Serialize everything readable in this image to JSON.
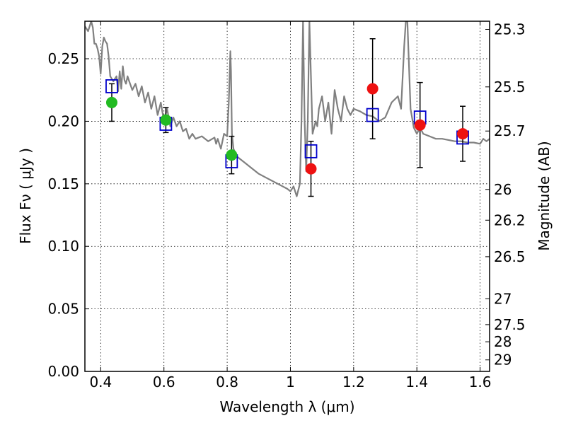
{
  "chart_data": {
    "type": "scatter",
    "xlabel": "Wavelength  λ (μm)",
    "ylabel": "Flux  Fν  ( μJy )",
    "y2label": "Magnitude (AB)",
    "xlim": [
      0.35,
      1.63
    ],
    "ylim": [
      0.0,
      0.28
    ],
    "grid": true,
    "xticks": [
      {
        "value": 0.4,
        "label": "0.4"
      },
      {
        "value": 0.6,
        "label": "0.6"
      },
      {
        "value": 0.8,
        "label": "0.8"
      },
      {
        "value": 1.0,
        "label": "1"
      },
      {
        "value": 1.2,
        "label": "1.2"
      },
      {
        "value": 1.4,
        "label": "1.4"
      },
      {
        "value": 1.6,
        "label": "1.6"
      }
    ],
    "yticks": [
      {
        "value": 0.0,
        "label": "0.00"
      },
      {
        "value": 0.05,
        "label": "0.05"
      },
      {
        "value": 0.1,
        "label": "0.10"
      },
      {
        "value": 0.15,
        "label": "0.15"
      },
      {
        "value": 0.2,
        "label": "0.20"
      },
      {
        "value": 0.25,
        "label": "0.25"
      }
    ],
    "y2ticks": [
      {
        "label": "25.3",
        "flux": 0.2735
      },
      {
        "label": "25.5",
        "flux": 0.2275
      },
      {
        "label": "25.7",
        "flux": 0.1922
      },
      {
        "label": "26",
        "flux": 0.1455
      },
      {
        "label": "26.2",
        "flux": 0.1209
      },
      {
        "label": "26.5",
        "flux": 0.0917
      },
      {
        "label": "27",
        "flux": 0.0581
      },
      {
        "label": "27.5",
        "flux": 0.0374
      },
      {
        "label": "28",
        "flux": 0.0237
      },
      {
        "label": "29",
        "flux": 0.0092
      }
    ],
    "series": [
      {
        "marker": "circle",
        "color": "#22bb22",
        "points": [
          {
            "x": 0.435,
            "y": 0.215,
            "yerr": 0.015
          },
          {
            "x": 0.606,
            "y": 0.201,
            "yerr": 0.01
          },
          {
            "x": 0.814,
            "y": 0.173,
            "yerr": 0.015
          }
        ]
      },
      {
        "marker": "circle",
        "color": "#ee1111",
        "points": [
          {
            "x": 1.065,
            "y": 0.162,
            "yerr": 0.022
          },
          {
            "x": 1.26,
            "y": 0.226,
            "yerr": 0.04
          },
          {
            "x": 1.41,
            "y": 0.197,
            "yerr": 0.034
          },
          {
            "x": 1.545,
            "y": 0.19,
            "yerr": 0.022
          }
        ]
      },
      {
        "marker": "square-open",
        "color": "#0000cc",
        "points": [
          {
            "x": 0.435,
            "y": 0.228
          },
          {
            "x": 0.606,
            "y": 0.198
          },
          {
            "x": 0.814,
            "y": 0.168
          },
          {
            "x": 1.065,
            "y": 0.176
          },
          {
            "x": 1.26,
            "y": 0.205
          },
          {
            "x": 1.41,
            "y": 0.203
          },
          {
            "x": 1.545,
            "y": 0.187
          }
        ]
      },
      {
        "type": "line",
        "color": "#808080",
        "x": [
          0.35,
          0.36,
          0.37,
          0.375,
          0.38,
          0.385,
          0.39,
          0.395,
          0.4,
          0.405,
          0.41,
          0.415,
          0.42,
          0.425,
          0.43,
          0.44,
          0.45,
          0.455,
          0.46,
          0.465,
          0.47,
          0.475,
          0.48,
          0.485,
          0.49,
          0.5,
          0.51,
          0.52,
          0.53,
          0.54,
          0.55,
          0.56,
          0.57,
          0.58,
          0.59,
          0.6,
          0.61,
          0.62,
          0.63,
          0.64,
          0.65,
          0.66,
          0.67,
          0.68,
          0.69,
          0.7,
          0.72,
          0.74,
          0.76,
          0.765,
          0.77,
          0.78,
          0.79,
          0.8,
          0.805,
          0.81,
          0.812,
          0.815,
          0.82,
          0.83,
          0.84,
          0.86,
          0.88,
          0.9,
          0.93,
          0.96,
          0.99,
          1.0,
          1.01,
          1.02,
          1.03,
          1.035,
          1.04,
          1.045,
          1.05,
          1.055,
          1.06,
          1.07,
          1.08,
          1.085,
          1.09,
          1.1,
          1.11,
          1.12,
          1.13,
          1.14,
          1.15,
          1.16,
          1.17,
          1.18,
          1.19,
          1.2,
          1.22,
          1.24,
          1.26,
          1.28,
          1.3,
          1.32,
          1.34,
          1.35,
          1.36,
          1.365,
          1.37,
          1.38,
          1.39,
          1.4,
          1.41,
          1.42,
          1.44,
          1.46,
          1.48,
          1.5,
          1.52,
          1.54,
          1.56,
          1.58,
          1.6,
          1.61,
          1.62,
          1.63
        ],
        "y": [
          0.276,
          0.272,
          0.28,
          0.275,
          0.262,
          0.262,
          0.258,
          0.252,
          0.238,
          0.26,
          0.267,
          0.264,
          0.262,
          0.252,
          0.236,
          0.232,
          0.236,
          0.224,
          0.24,
          0.226,
          0.244,
          0.233,
          0.23,
          0.236,
          0.232,
          0.225,
          0.23,
          0.22,
          0.228,
          0.215,
          0.223,
          0.21,
          0.22,
          0.205,
          0.215,
          0.2,
          0.21,
          0.196,
          0.203,
          0.196,
          0.2,
          0.192,
          0.194,
          0.186,
          0.19,
          0.186,
          0.188,
          0.184,
          0.187,
          0.182,
          0.186,
          0.178,
          0.19,
          0.188,
          0.214,
          0.256,
          0.24,
          0.19,
          0.178,
          0.172,
          0.17,
          0.166,
          0.162,
          0.158,
          0.154,
          0.15,
          0.146,
          0.144,
          0.148,
          0.14,
          0.15,
          0.2,
          0.28,
          0.2,
          0.16,
          0.2,
          0.28,
          0.19,
          0.2,
          0.196,
          0.21,
          0.22,
          0.2,
          0.215,
          0.19,
          0.225,
          0.21,
          0.2,
          0.22,
          0.21,
          0.205,
          0.21,
          0.208,
          0.205,
          0.204,
          0.2,
          0.203,
          0.215,
          0.22,
          0.21,
          0.26,
          0.28,
          0.28,
          0.21,
          0.195,
          0.19,
          0.195,
          0.19,
          0.188,
          0.186,
          0.186,
          0.185,
          0.184,
          0.184,
          0.183,
          0.183,
          0.182,
          0.186,
          0.184,
          0.186
        ]
      }
    ]
  }
}
